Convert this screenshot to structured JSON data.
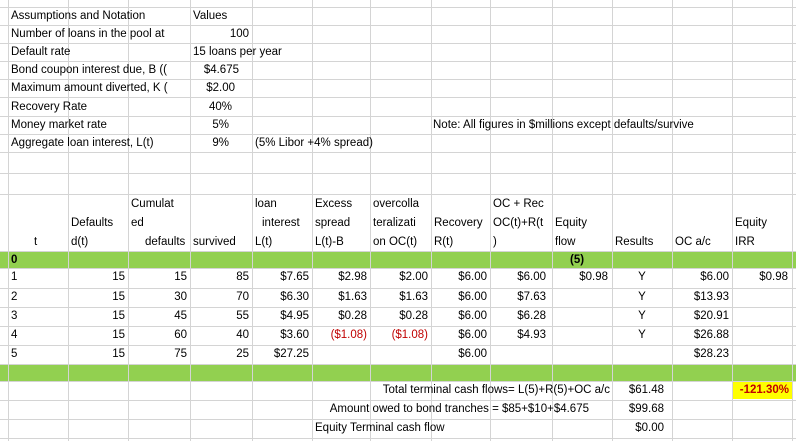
{
  "assumptions": {
    "header_label": "Assumptions and Notation",
    "header_values": "Values",
    "rows": [
      {
        "label": "Number of loans in the pool at",
        "value": "100"
      },
      {
        "label": "Default rate",
        "value": "15 loans per year"
      },
      {
        "label": "Bond coupon interest due, B ((",
        "value": "$4.675"
      },
      {
        "label": "Maximum amount diverted, K (",
        "value": "$2.00"
      },
      {
        "label": "Recovery Rate",
        "value": "40%"
      },
      {
        "label": "Money market rate",
        "value": "5%"
      },
      {
        "label": "Aggregate loan interest, L(t)",
        "value": "9%",
        "note": "(5% Libor +4% spread)"
      }
    ],
    "note": "Note: All figures in $millions except defaults/survive"
  },
  "table": {
    "headers": {
      "t": [
        "t"
      ],
      "defaults": [
        "Defaults",
        "d(t)"
      ],
      "cumulated": [
        "Cumulat",
        "ed",
        "defaults"
      ],
      "survived": [
        "survived"
      ],
      "loan_interest": [
        "loan",
        "interest",
        "L(t)"
      ],
      "excess_spread": [
        "Excess",
        "spread",
        "L(t)-B"
      ],
      "overcoll": [
        "overcolla",
        "teralizati",
        "on OC(t)"
      ],
      "recovery": [
        "Recovery",
        "R(t)"
      ],
      "oc_rec": [
        "OC + Rec",
        "OC(t)+R(t",
        ")"
      ],
      "equity_flow": [
        "Equity",
        "flow"
      ],
      "results": [
        "Results"
      ],
      "oc_ac": [
        "OC a/c"
      ],
      "equity_irr": [
        "Equity",
        "IRR"
      ]
    },
    "row0": {
      "t": "0",
      "equity_flow": "(5)"
    },
    "rows": [
      {
        "t": "1",
        "d": "15",
        "cum": "15",
        "surv": "85",
        "L": "$7.65",
        "es": "$2.98",
        "oc": "$2.00",
        "rec": "$6.00",
        "ocrec": "$6.00",
        "eq": "$0.98",
        "res": "Y",
        "ocac": "$6.00",
        "irr": "$0.98"
      },
      {
        "t": "2",
        "d": "15",
        "cum": "30",
        "surv": "70",
        "L": "$6.30",
        "es": "$1.63",
        "oc": "$1.63",
        "rec": "$6.00",
        "ocrec": "$7.63",
        "eq": "",
        "res": "Y",
        "ocac": "$13.93",
        "irr": ""
      },
      {
        "t": "3",
        "d": "15",
        "cum": "45",
        "surv": "55",
        "L": "$4.95",
        "es": "$0.28",
        "oc": "$0.28",
        "rec": "$6.00",
        "ocrec": "$6.28",
        "eq": "",
        "res": "Y",
        "ocac": "$20.91",
        "irr": ""
      },
      {
        "t": "4",
        "d": "15",
        "cum": "60",
        "surv": "40",
        "L": "$3.60",
        "es": "($1.08)",
        "oc": "($1.08)",
        "rec": "$6.00",
        "ocrec": "$4.93",
        "eq": "",
        "res": "Y",
        "ocac": "$26.88",
        "irr": ""
      },
      {
        "t": "5",
        "d": "15",
        "cum": "75",
        "surv": "25",
        "L": "$27.25",
        "es": "",
        "oc": "",
        "rec": "$6.00",
        "ocrec": "",
        "eq": "",
        "res": "",
        "ocac": "$28.23",
        "irr": ""
      }
    ]
  },
  "summary": [
    {
      "label": "Total terminal cash flows= L(5)+R(5)+OC a/c",
      "value": "$61.48",
      "irr": "-121.30%"
    },
    {
      "label": "Amount owed to bond tranches = $85+$10+$4.675",
      "value": "$99.68"
    },
    {
      "label": "Equity Terminal cash flow",
      "value": "$0.00"
    }
  ],
  "colors": {
    "band": "#92d050",
    "negative": "#c00000",
    "highlight": "#ffff00"
  }
}
